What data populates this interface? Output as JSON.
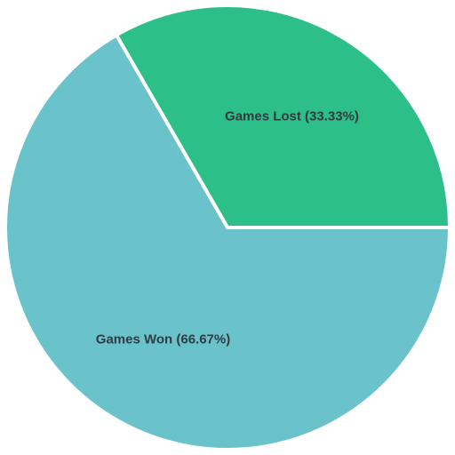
{
  "chart_data": {
    "type": "pie",
    "title": "",
    "start_angle_deg": -30,
    "direction": "clockwise",
    "legend": "none",
    "slices": [
      {
        "label": "Games Lost (33.33%)",
        "name": "Games Lost",
        "value": 33.33,
        "color": "#2cbf87"
      },
      {
        "label": "Games Won (66.67%)",
        "name": "Games Won",
        "value": 66.67,
        "color": "#6ac3cb"
      }
    ]
  }
}
